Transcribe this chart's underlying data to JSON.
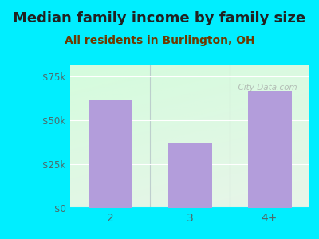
{
  "categories": [
    "2",
    "3",
    "4+"
  ],
  "values": [
    62000,
    37000,
    67000
  ],
  "bar_color": "#b39ddb",
  "title": "Median family income by family size",
  "subtitle": "All residents in Burlington, OH",
  "title_fontsize": 13,
  "subtitle_fontsize": 10,
  "title_color": "#212121",
  "subtitle_color": "#6d3a00",
  "ylim": [
    0,
    82000
  ],
  "yticks": [
    0,
    25000,
    50000,
    75000
  ],
  "ytick_labels": [
    "$0",
    "$25k",
    "$50k",
    "$75k"
  ],
  "background_color": "#00eeff",
  "tick_color": "#4d6b6b",
  "watermark": "City-Data.com"
}
